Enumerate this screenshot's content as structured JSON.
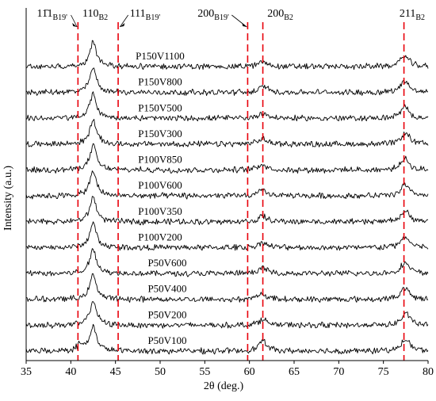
{
  "chart_data": {
    "type": "line",
    "xlabel": "2θ (deg.)",
    "ylabel": "Intensity (a.u.)",
    "xlim": [
      35,
      80
    ],
    "x_ticks": [
      35,
      40,
      45,
      50,
      55,
      60,
      65,
      70,
      75,
      80
    ],
    "y_ticks_shown": false,
    "grid": false,
    "series": [
      {
        "name": "P150V1100",
        "label_x": 50.0,
        "peaks": [
          {
            "x": 42.5,
            "h": 2.2
          },
          {
            "x": 61.5,
            "h": 0.45
          },
          {
            "x": 77.4,
            "h": 1.0
          }
        ]
      },
      {
        "name": "P150V800",
        "label_x": 50.0,
        "peaks": [
          {
            "x": 42.5,
            "h": 2.2
          },
          {
            "x": 61.6,
            "h": 0.55
          },
          {
            "x": 77.4,
            "h": 1.1
          }
        ]
      },
      {
        "name": "P150V500",
        "label_x": 50.0,
        "peaks": [
          {
            "x": 42.5,
            "h": 2.2
          },
          {
            "x": 61.5,
            "h": 0.5
          },
          {
            "x": 77.4,
            "h": 1.0
          }
        ]
      },
      {
        "name": "P150V300",
        "label_x": 50.0,
        "peaks": [
          {
            "x": 42.5,
            "h": 2.2
          },
          {
            "x": 61.5,
            "h": 0.5
          },
          {
            "x": 77.5,
            "h": 1.0
          }
        ]
      },
      {
        "name": "P100V850",
        "label_x": 50.0,
        "peaks": [
          {
            "x": 42.5,
            "h": 2.2
          },
          {
            "x": 61.4,
            "h": 0.55
          },
          {
            "x": 77.4,
            "h": 1.0
          }
        ]
      },
      {
        "name": "P100V600",
        "label_x": 50.0,
        "peaks": [
          {
            "x": 42.5,
            "h": 2.2
          },
          {
            "x": 61.5,
            "h": 0.5
          },
          {
            "x": 77.4,
            "h": 1.0
          }
        ]
      },
      {
        "name": "P100V350",
        "label_x": 50.0,
        "peaks": [
          {
            "x": 42.5,
            "h": 2.2
          },
          {
            "x": 61.5,
            "h": 0.5
          },
          {
            "x": 77.4,
            "h": 1.0
          }
        ]
      },
      {
        "name": "P100V200",
        "label_x": 50.0,
        "peaks": [
          {
            "x": 42.5,
            "h": 2.2
          },
          {
            "x": 61.5,
            "h": 0.5
          },
          {
            "x": 77.4,
            "h": 1.0
          }
        ]
      },
      {
        "name": "P50V600",
        "label_x": 50.8,
        "peaks": [
          {
            "x": 42.5,
            "h": 2.2
          },
          {
            "x": 61.5,
            "h": 0.5
          },
          {
            "x": 77.4,
            "h": 1.0
          }
        ]
      },
      {
        "name": "P50V400",
        "label_x": 50.8,
        "peaks": [
          {
            "x": 42.5,
            "h": 2.2
          },
          {
            "x": 61.5,
            "h": 0.5
          },
          {
            "x": 77.4,
            "h": 1.0
          }
        ]
      },
      {
        "name": "P50V200",
        "label_x": 50.8,
        "peaks": [
          {
            "x": 42.5,
            "h": 2.2
          },
          {
            "x": 61.5,
            "h": 0.55
          },
          {
            "x": 77.5,
            "h": 1.1
          }
        ]
      },
      {
        "name": "P50V100",
        "label_x": 50.8,
        "peaks": [
          {
            "x": 41.0,
            "h": 0.5
          },
          {
            "x": 42.5,
            "h": 2.2
          },
          {
            "x": 61.5,
            "h": 0.9
          },
          {
            "x": 77.5,
            "h": 1.1
          }
        ]
      }
    ],
    "reference_lines": [
      {
        "x": 40.8,
        "label": "11̄1",
        "subscript": "B19'",
        "label_x": 36.2,
        "arrow_to_x": 40.7
      },
      {
        "x": 45.3,
        "label": "111",
        "subscript": "B19'",
        "label_x": 46.6,
        "arrow_to_x": 45.5
      },
      {
        "x": 59.8,
        "label": "200",
        "subscript": "B19'",
        "label_x": 54.2,
        "arrow_to_x": 59.7
      },
      {
        "x": 61.5,
        "label": "200",
        "subscript": "B2",
        "label_x": 62.0,
        "arrow_to_x": null
      },
      {
        "x": 77.3,
        "label": "211",
        "subscript": "B2",
        "label_x": 76.8,
        "arrow_to_x": null
      }
    ],
    "peak_label_110": {
      "label": "110",
      "subscript": "B2",
      "x": 41.3
    }
  },
  "colors": {
    "reference_line": "#e8000b",
    "trace": "#000000",
    "axis": "#000000"
  }
}
